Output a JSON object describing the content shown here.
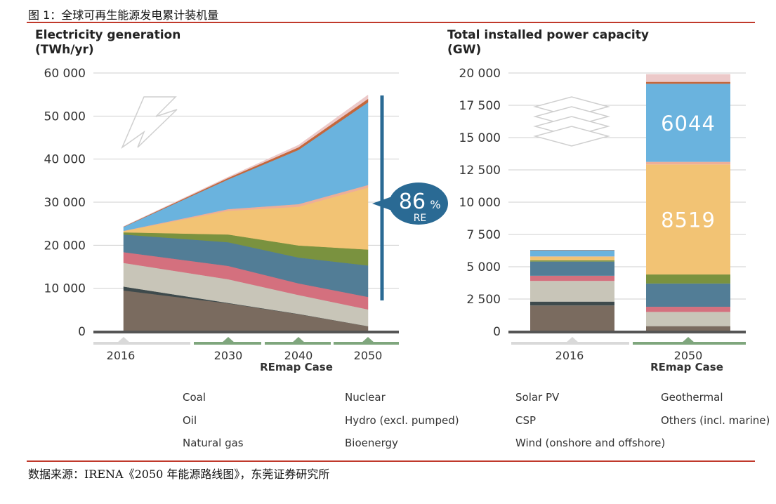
{
  "figure": {
    "title": "图 1：全球可再生能源发电累计装机量",
    "source": "数据来源：IRENA《2050 年能源路线图》，东莞证券研究所"
  },
  "colors": {
    "coal": "#7a6b5f",
    "oil": "#3e4a4c",
    "natural_gas": "#c8c5b8",
    "nuclear": "#d4707e",
    "hydro": "#527d96",
    "bioenergy": "#7a923f",
    "solar_pv": "#f2c374",
    "csp": "#edae98",
    "wind": "#6ab3de",
    "geothermal": "#c4673c",
    "others": "#ecc9c9",
    "re_line": "#2a6a94",
    "axis": "#555555",
    "remap_bar": "#7fa67d",
    "base_bar": "#d9d9d9"
  },
  "chart_data": [
    {
      "type": "area",
      "title": "Electricity generation",
      "subtitle": "(TWh/yr)",
      "x": [
        "2016",
        "2030",
        "2040",
        "2050"
      ],
      "x_group_label": "REmap Case",
      "ylim": [
        0,
        60000
      ],
      "yticks": [
        "0",
        "10 000",
        "20 000",
        "30 000",
        "40 000",
        "50 000",
        "60 000"
      ],
      "stack_order": [
        "coal",
        "oil",
        "natural_gas",
        "nuclear",
        "hydro",
        "bioenergy",
        "solar_pv",
        "csp",
        "wind",
        "geothermal",
        "others"
      ],
      "series": [
        {
          "key": "coal",
          "values": [
            9500,
            6500,
            4000,
            1200
          ]
        },
        {
          "key": "oil",
          "values": [
            900,
            100,
            50,
            0
          ]
        },
        {
          "key": "natural_gas",
          "values": [
            5500,
            5500,
            4400,
            3900
          ]
        },
        {
          "key": "nuclear",
          "values": [
            2500,
            3100,
            2700,
            2900
          ]
        },
        {
          "key": "hydro",
          "values": [
            4100,
            5500,
            6000,
            7300
          ]
        },
        {
          "key": "bioenergy",
          "values": [
            500,
            1800,
            2800,
            3700
          ]
        },
        {
          "key": "solar_pv",
          "values": [
            300,
            5500,
            9000,
            14400
          ]
        },
        {
          "key": "csp",
          "values": [
            50,
            400,
            600,
            600
          ]
        },
        {
          "key": "wind",
          "values": [
            900,
            6900,
            12600,
            19200
          ]
        },
        {
          "key": "geothermal",
          "values": [
            80,
            350,
            600,
            800
          ]
        },
        {
          "key": "others",
          "values": [
            20,
            200,
            500,
            900
          ]
        }
      ],
      "re_indicator": {
        "value": "86",
        "unit": "%",
        "label": "RE"
      }
    },
    {
      "type": "bar",
      "stacked": true,
      "title": "Total installed power capacity",
      "subtitle": "(GW)",
      "categories": [
        "2016",
        "2050"
      ],
      "x_group_label": "REmap Case",
      "ylim": [
        0,
        20000
      ],
      "yticks": [
        "0",
        "2 500",
        "5 000",
        "7 500",
        "10 000",
        "12 500",
        "15 000",
        "17 500",
        "20 000"
      ],
      "series": [
        {
          "key": "coal",
          "values": [
            2000,
            400
          ]
        },
        {
          "key": "oil",
          "values": [
            300,
            0
          ]
        },
        {
          "key": "natural_gas",
          "values": [
            1600,
            1100
          ]
        },
        {
          "key": "nuclear",
          "values": [
            400,
            400
          ]
        },
        {
          "key": "hydro",
          "values": [
            1100,
            1800
          ]
        },
        {
          "key": "bioenergy",
          "values": [
            100,
            700
          ]
        },
        {
          "key": "solar_pv",
          "values": [
            290,
            8519
          ]
        },
        {
          "key": "csp",
          "values": [
            10,
            200
          ]
        },
        {
          "key": "wind",
          "values": [
            480,
            6044
          ]
        },
        {
          "key": "geothermal",
          "values": [
            20,
            150
          ]
        },
        {
          "key": "others",
          "values": [
            0,
            600
          ]
        }
      ],
      "value_labels": [
        {
          "series": "solar_pv",
          "category": "2050",
          "text": "8519"
        },
        {
          "series": "wind",
          "category": "2050",
          "text": "6044"
        }
      ]
    }
  ],
  "legend": [
    {
      "key": "coal",
      "label": "Coal"
    },
    {
      "key": "oil",
      "label": "Oil"
    },
    {
      "key": "natural_gas",
      "label": "Natural gas"
    },
    {
      "key": "nuclear",
      "label": "Nuclear"
    },
    {
      "key": "hydro",
      "label": "Hydro\n(excl. pumped)"
    },
    {
      "key": "bioenergy",
      "label": "Bioenergy"
    },
    {
      "key": "solar_pv",
      "label": "Solar PV"
    },
    {
      "key": "csp",
      "label": "CSP"
    },
    {
      "key": "wind",
      "label": "Wind (onshore and offshore)"
    },
    {
      "key": "geothermal",
      "label": "Geothermal"
    },
    {
      "key": "others",
      "label": "Others\n(incl. marine)"
    }
  ],
  "icons": [
    "lightning-bolt-icon",
    "stacked-layers-icon"
  ]
}
